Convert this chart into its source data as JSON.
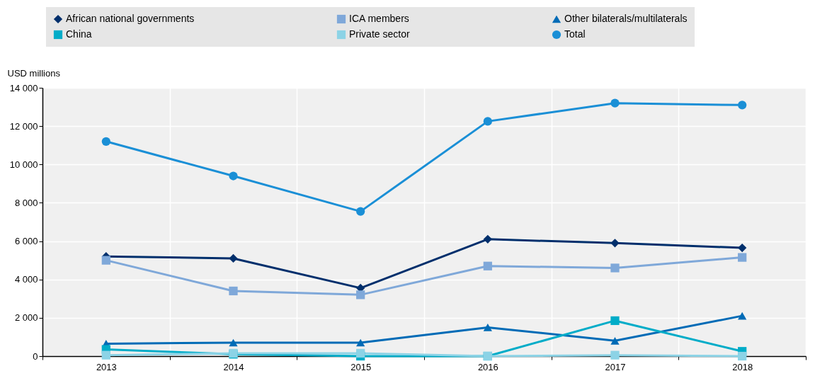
{
  "chart_data": {
    "type": "line",
    "ylabel": "USD millions",
    "categories": [
      "2013",
      "2014",
      "2015",
      "2016",
      "2017",
      "2018"
    ],
    "ylim": [
      0,
      14000
    ],
    "yticks": [
      {
        "value": 0,
        "label": "0"
      },
      {
        "value": 2000,
        "label": "2 000"
      },
      {
        "value": 4000,
        "label": "4 000"
      },
      {
        "value": 6000,
        "label": "6 000"
      },
      {
        "value": 8000,
        "label": "8 000"
      },
      {
        "value": 10000,
        "label": "10 000"
      },
      {
        "value": 12000,
        "label": "12 000"
      },
      {
        "value": 14000,
        "label": "14 000"
      }
    ],
    "grid": true,
    "legend": "top",
    "series": [
      {
        "name": "African national governments",
        "color": "#002f6c",
        "marker": "diamond",
        "values": [
          5200,
          5100,
          3550,
          6100,
          5900,
          5650
        ]
      },
      {
        "name": "ICA members",
        "color": "#7fa8d9",
        "marker": "square",
        "values": [
          5000,
          3400,
          3200,
          4700,
          4600,
          5150
        ]
      },
      {
        "name": "Other bilaterals/multilaterals",
        "color": "#006bb6",
        "marker": "triangle",
        "values": [
          650,
          700,
          700,
          1500,
          800,
          2100
        ]
      },
      {
        "name": "China",
        "color": "#00acc8",
        "marker": "square",
        "values": [
          350,
          100,
          0,
          0,
          1850,
          250
        ]
      },
      {
        "name": "Private sector",
        "color": "#8cd3e6",
        "marker": "square",
        "values": [
          50,
          150,
          150,
          0,
          50,
          0
        ]
      },
      {
        "name": "Total",
        "color": "#1a8fd6",
        "marker": "circle",
        "values": [
          11200,
          9400,
          7550,
          12250,
          13200,
          13100
        ]
      }
    ]
  }
}
